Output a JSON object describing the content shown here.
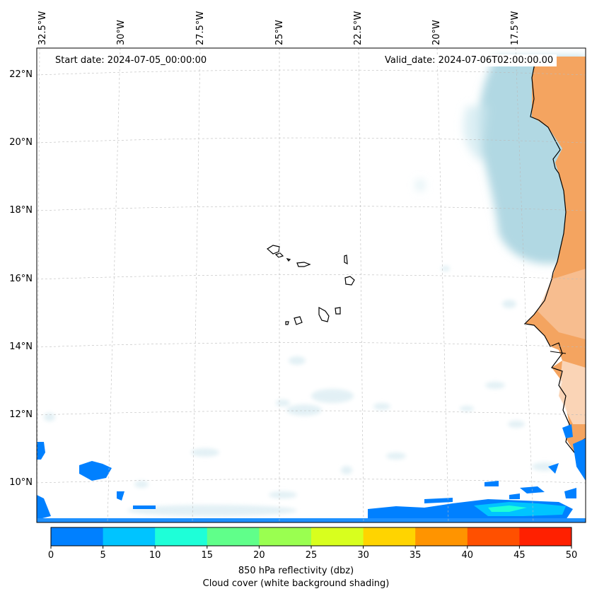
{
  "map": {
    "start_date": "Start date: 2024-07-05_00:00:00",
    "valid_date": "Valid_date: 2024-07-06T02:00:00.00",
    "lat_labels": [
      "22°N",
      "20°N",
      "18°N",
      "16°N",
      "14°N",
      "12°N",
      "10°N"
    ],
    "lon_labels": [
      "32.5°W",
      "30°W",
      "27.5°W",
      "25°W",
      "22.5°W",
      "20°W",
      "17.5°W"
    ],
    "extent": {
      "lon_west": 32.5,
      "lon_east": 15.5,
      "lat_south": 8.9,
      "lat_north": 22.8
    },
    "colors": {
      "land": "#f4a460",
      "cloud": "#a8d4e0",
      "coastline": "#000000"
    }
  },
  "colorbar": {
    "ticks": [
      "0",
      "5",
      "10",
      "15",
      "20",
      "25",
      "30",
      "35",
      "40",
      "45",
      "50"
    ],
    "colors": [
      "#0080ff",
      "#00c4ff",
      "#1effd8",
      "#60ff8a",
      "#9aff50",
      "#d8ff1e",
      "#ffd400",
      "#ff9400",
      "#ff5000",
      "#ff2000"
    ],
    "label_line1": "850 hPa reflectivity (dbz)",
    "label_line2": "Cloud cover (white background shading)"
  },
  "chart_data": {
    "type": "heatmap",
    "title": "",
    "variable": "850 hPa reflectivity (dbz)",
    "secondary_variable": "Cloud cover (white background shading)",
    "value_range": [
      0,
      50
    ],
    "levels": [
      0,
      5,
      10,
      15,
      20,
      25,
      30,
      35,
      40,
      45,
      50
    ]
  }
}
